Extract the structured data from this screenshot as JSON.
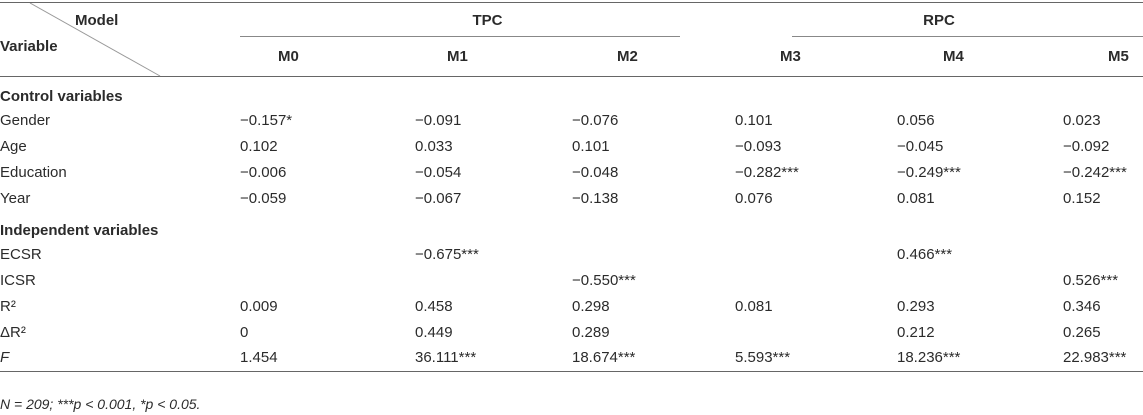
{
  "header": {
    "model": "Model",
    "variable": "Variable",
    "groups": [
      "TPC",
      "RPC"
    ],
    "columns": [
      "M0",
      "M1",
      "M2",
      "M3",
      "M4",
      "M5"
    ]
  },
  "rows": [
    {
      "section": "Control variables"
    },
    {
      "label": "Gender",
      "cells": [
        "−0.157*",
        "−0.091",
        "−0.076",
        "0.101",
        "0.056",
        "0.023"
      ]
    },
    {
      "label": "Age",
      "cells": [
        "0.102",
        "0.033",
        "0.101",
        "−0.093",
        "−0.045",
        "−0.092"
      ]
    },
    {
      "label": "Education",
      "cells": [
        "−0.006",
        "−0.054",
        "−0.048",
        "−0.282***",
        "−0.249***",
        "−0.242***"
      ]
    },
    {
      "label": "Year",
      "cells": [
        "−0.059",
        "−0.067",
        "−0.138",
        "0.076",
        "0.081",
        "0.152"
      ]
    },
    {
      "section": "Independent variables"
    },
    {
      "label": "ECSR",
      "cells": [
        null,
        "−0.675***",
        null,
        null,
        "0.466***",
        null
      ]
    },
    {
      "label": "ICSR",
      "cells": [
        null,
        null,
        "−0.550***",
        null,
        null,
        "0.526***"
      ]
    },
    {
      "label": "R²",
      "cells": [
        "0.009",
        "0.458",
        "0.298",
        "0.081",
        "0.293",
        "0.346"
      ]
    },
    {
      "label": "ΔR²",
      "cells": [
        "0",
        "0.449",
        "0.289",
        null,
        "0.212",
        "0.265"
      ]
    },
    {
      "label": "F",
      "italic": true,
      "cells": [
        "1.454",
        "36.111***",
        "18.674***",
        "5.593***",
        "18.236***",
        "22.983***"
      ]
    }
  ],
  "footnote": "N = 209; ***p < 0.001, *p < 0.05."
}
